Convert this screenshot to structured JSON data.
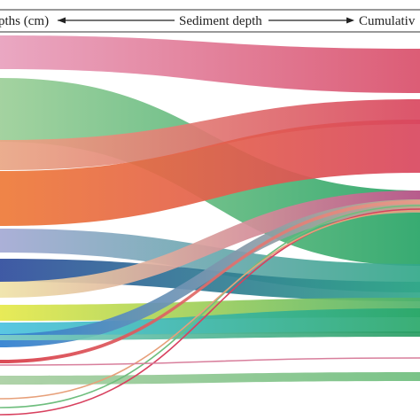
{
  "header": {
    "left_label": "pths (cm)",
    "center_label": "Sediment depth",
    "right_label": "Cumulativ"
  },
  "flows": [
    {
      "name": "flow-pink-red",
      "from_color": "#e8a0bd",
      "to_color": "#d94f6a"
    },
    {
      "name": "flow-green",
      "from_color": "#9ccf98",
      "to_color": "#27a466"
    },
    {
      "name": "flow-peach-red",
      "from_color": "#e9a685",
      "to_color": "#d9475f"
    },
    {
      "name": "flow-orange-red",
      "from_color": "#ee7a38",
      "to_color": "#d9475f"
    },
    {
      "name": "flow-lavender",
      "from_color": "#a4a9d4",
      "to_color": "#32a889"
    },
    {
      "name": "flow-navy",
      "from_color": "#2f4c9d",
      "to_color": "#32a889"
    },
    {
      "name": "flow-yellow-pink",
      "from_color": "#efe3a8",
      "to_color": "#c2558f"
    },
    {
      "name": "flow-yellow",
      "from_color": "#e6e94a",
      "to_color": "#4fb26c"
    },
    {
      "name": "flow-cyan",
      "from_color": "#4cc2e0",
      "to_color": "#2aa86a"
    },
    {
      "name": "flow-blue",
      "from_color": "#2d7fd0",
      "to_color": "#c6ae8e"
    },
    {
      "name": "flow-teal",
      "from_color": "#7fcfc9",
      "to_color": "#2a9e64"
    },
    {
      "name": "flow-red",
      "from_color": "#d83c48",
      "to_color": "#e89b8a"
    },
    {
      "name": "flow-sage",
      "from_color": "#a9cfa2",
      "to_color": "#6fbe7e"
    }
  ]
}
